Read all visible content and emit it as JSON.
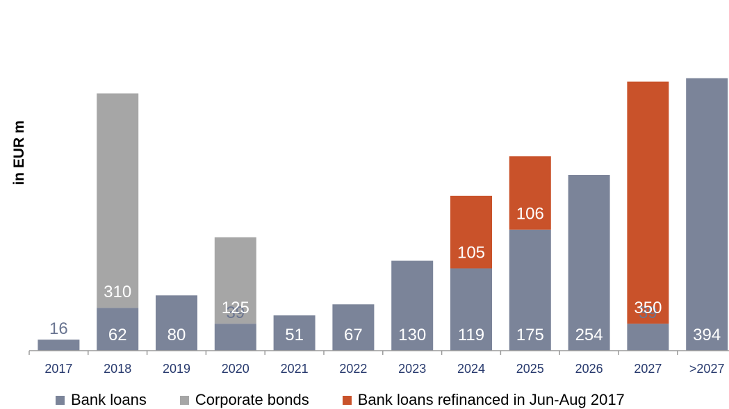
{
  "ylabel": "in EUR m",
  "colors": {
    "bank_loans": "#7b8499",
    "corporate_bonds": "#a6a6a6",
    "refinanced": "#c9522a",
    "axis": "#9a9a9a",
    "tick_text": "#283a6e",
    "label_white": "#ffffff",
    "label_outside": "#6a7591"
  },
  "legend": [
    {
      "label": "Bank loans",
      "color_key": "bank_loans"
    },
    {
      "label": "Corporate bonds",
      "color_key": "corporate_bonds"
    },
    {
      "label": "Bank loans refinanced in Jun-Aug 2017",
      "color_key": "refinanced"
    }
  ],
  "chart_data": {
    "type": "bar",
    "stacked": true,
    "title": "",
    "xlabel": "",
    "ylabel": "in EUR m",
    "ylim": [
      0,
      497
    ],
    "categories": [
      "2017",
      "2018",
      "2019",
      "2020",
      "2021",
      "2022",
      "2023",
      "2024",
      "2025",
      "2026",
      "2027",
      ">2027"
    ],
    "series": [
      {
        "name": "Bank loans",
        "color_key": "bank_loans",
        "values": [
          16,
          62,
          80,
          39,
          51,
          67,
          130,
          119,
          175,
          254,
          39,
          394
        ]
      },
      {
        "name": "Corporate bonds",
        "color_key": "corporate_bonds",
        "values": [
          0,
          310,
          0,
          125,
          0,
          0,
          0,
          0,
          0,
          0,
          0,
          0
        ]
      },
      {
        "name": "Bank loans refinanced in Jun-Aug 2017",
        "color_key": "refinanced",
        "values": [
          0,
          0,
          0,
          0,
          0,
          0,
          0,
          105,
          106,
          0,
          350,
          0
        ]
      }
    ],
    "grid": false,
    "legend_position": "bottom"
  }
}
